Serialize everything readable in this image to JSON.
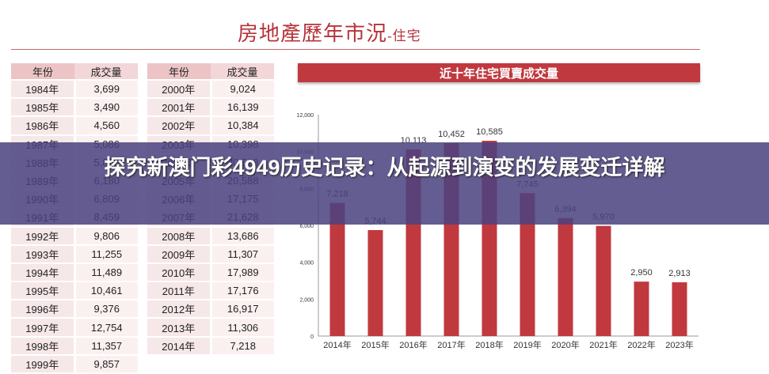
{
  "header": {
    "title": "房地產歷年市況",
    "title_suffix": "-住宅"
  },
  "table_left": {
    "col_year": "年份",
    "col_value": "成交量",
    "rows": [
      [
        "1984年",
        "3,699"
      ],
      [
        "1985年",
        "3,490"
      ],
      [
        "1986年",
        "4,560"
      ],
      [
        "1987年",
        "5,086"
      ],
      [
        "1988年",
        "5,838"
      ],
      [
        "1989年",
        "6,180"
      ],
      [
        "1990年",
        "6,809"
      ],
      [
        "1991年",
        "8,459"
      ],
      [
        "1992年",
        "9,806"
      ],
      [
        "1993年",
        "11,255"
      ],
      [
        "1994年",
        "11,489"
      ],
      [
        "1995年",
        "10,461"
      ],
      [
        "1996年",
        "9,376"
      ],
      [
        "1997年",
        "12,754"
      ],
      [
        "1998年",
        "11,357"
      ],
      [
        "1999年",
        "9,857"
      ]
    ]
  },
  "table_right": {
    "col_year": "年份",
    "col_value": "成交量",
    "rows": [
      [
        "2000年",
        "9,024"
      ],
      [
        "2001年",
        "16,139"
      ],
      [
        "2002年",
        "10,384"
      ],
      [
        "2003年",
        "10,398"
      ],
      [
        "2004年",
        "20,588"
      ],
      [
        "2005年",
        "20,588"
      ],
      [
        "2006年",
        "17,175"
      ],
      [
        "2007年",
        "21,628"
      ],
      [
        "2008年",
        "13,686"
      ],
      [
        "2009年",
        "11,307"
      ],
      [
        "2010年",
        "17,989"
      ],
      [
        "2011年",
        "17,176"
      ],
      [
        "2012年",
        "16,917"
      ],
      [
        "2013年",
        "11,306"
      ],
      [
        "2014年",
        "7,218"
      ]
    ]
  },
  "overlay": {
    "headline": "探究新澳门彩4949历史记录：从起源到演变的发展变迁详解"
  },
  "colors": {
    "accent": "#c0393f",
    "bar": "#c0393f",
    "banner": "#4a4280"
  },
  "chart_data": {
    "type": "bar",
    "title": "近十年住宅買賣成交量",
    "categories": [
      "2014年",
      "2015年",
      "2016年",
      "2017年",
      "2018年",
      "2019年",
      "2020年",
      "2021年",
      "2022年",
      "2023年"
    ],
    "values": [
      7218,
      5744,
      10113,
      10452,
      10585,
      7745,
      6394,
      5970,
      2950,
      2913
    ],
    "value_labels": [
      "7,218",
      "5,744",
      "10,113",
      "10,452",
      "10,585",
      "7,745",
      "6,394",
      "5,970",
      "2,950",
      "2,913"
    ],
    "ylim": [
      0,
      12000
    ],
    "yticks": [
      "0",
      "2,000",
      "4,000",
      "6,000",
      "8,000",
      "10,000",
      "12,000"
    ],
    "grid": false
  }
}
